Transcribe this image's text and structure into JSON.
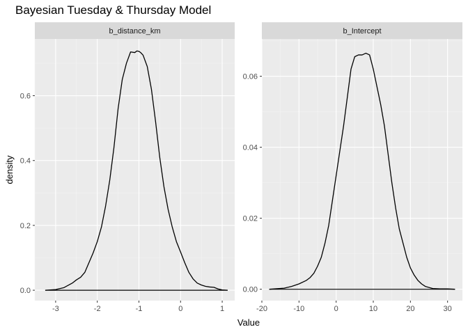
{
  "title": "Bayesian Tuesday & Thursday Model",
  "xlabel": "Value",
  "ylabel": "density",
  "chart_data": [
    {
      "type": "line",
      "panel": "b_distance_km",
      "xlim": [
        -3.5,
        1.3
      ],
      "ylim": [
        -0.032,
        0.775
      ],
      "x_ticks": [
        -3,
        -2,
        -1,
        0,
        1
      ],
      "y_ticks": [
        0.0,
        0.2,
        0.4,
        0.6
      ],
      "y_tick_labels": [
        "0.0",
        "0.2",
        "0.4",
        "0.6"
      ],
      "x_tick_labels": [
        "-3",
        "-2",
        "-1",
        "0",
        "1"
      ],
      "baseline": [
        -3.25,
        1.13
      ],
      "x": [
        -3.25,
        -3.0,
        -2.8,
        -2.6,
        -2.5,
        -2.4,
        -2.3,
        -2.2,
        -2.1,
        -2.0,
        -1.9,
        -1.8,
        -1.7,
        -1.6,
        -1.5,
        -1.4,
        -1.3,
        -1.2,
        -1.1,
        -1.05,
        -1.0,
        -0.95,
        -0.9,
        -0.8,
        -0.7,
        -0.6,
        -0.5,
        -0.4,
        -0.3,
        -0.2,
        -0.1,
        0.0,
        0.1,
        0.2,
        0.3,
        0.4,
        0.5,
        0.6,
        0.7,
        0.8,
        0.9,
        1.0,
        1.13
      ],
      "y": [
        0.0,
        0.002,
        0.008,
        0.022,
        0.032,
        0.04,
        0.055,
        0.085,
        0.115,
        0.15,
        0.195,
        0.26,
        0.34,
        0.44,
        0.56,
        0.65,
        0.7,
        0.735,
        0.733,
        0.738,
        0.737,
        0.732,
        0.725,
        0.69,
        0.62,
        0.52,
        0.41,
        0.32,
        0.25,
        0.195,
        0.15,
        0.118,
        0.085,
        0.055,
        0.035,
        0.022,
        0.016,
        0.012,
        0.01,
        0.009,
        0.004,
        0.001,
        0.0
      ]
    },
    {
      "type": "line",
      "panel": "b_Intercept",
      "xlim": [
        -20,
        34
      ],
      "ylim": [
        -0.0032,
        0.0705
      ],
      "x_ticks": [
        -20,
        -10,
        0,
        10,
        20,
        30
      ],
      "y_ticks": [
        0.0,
        0.02,
        0.04,
        0.06
      ],
      "y_tick_labels": [
        "0.00",
        "0.02",
        "0.04",
        "0.06"
      ],
      "x_tick_labels": [
        "-20",
        "-10",
        "0",
        "10",
        "20",
        "30"
      ],
      "baseline": [
        -18,
        32
      ],
      "x": [
        -18,
        -14,
        -12,
        -10,
        -8,
        -7,
        -6,
        -5,
        -4,
        -3,
        -2,
        -1,
        0,
        1,
        2,
        3,
        4,
        5,
        6,
        7,
        8,
        9,
        10,
        11,
        12,
        13,
        14,
        15,
        16,
        17,
        18,
        19,
        20,
        21,
        22,
        23,
        24,
        26,
        28,
        30,
        32
      ],
      "y": [
        0.0,
        0.0003,
        0.0008,
        0.0015,
        0.0025,
        0.0033,
        0.0045,
        0.0065,
        0.009,
        0.013,
        0.018,
        0.025,
        0.032,
        0.039,
        0.046,
        0.054,
        0.062,
        0.0655,
        0.066,
        0.066,
        0.0665,
        0.066,
        0.062,
        0.057,
        0.052,
        0.046,
        0.038,
        0.03,
        0.023,
        0.017,
        0.013,
        0.009,
        0.006,
        0.004,
        0.0025,
        0.0015,
        0.0008,
        0.0002,
        0.0001,
        0.0001,
        0.0
      ]
    }
  ]
}
